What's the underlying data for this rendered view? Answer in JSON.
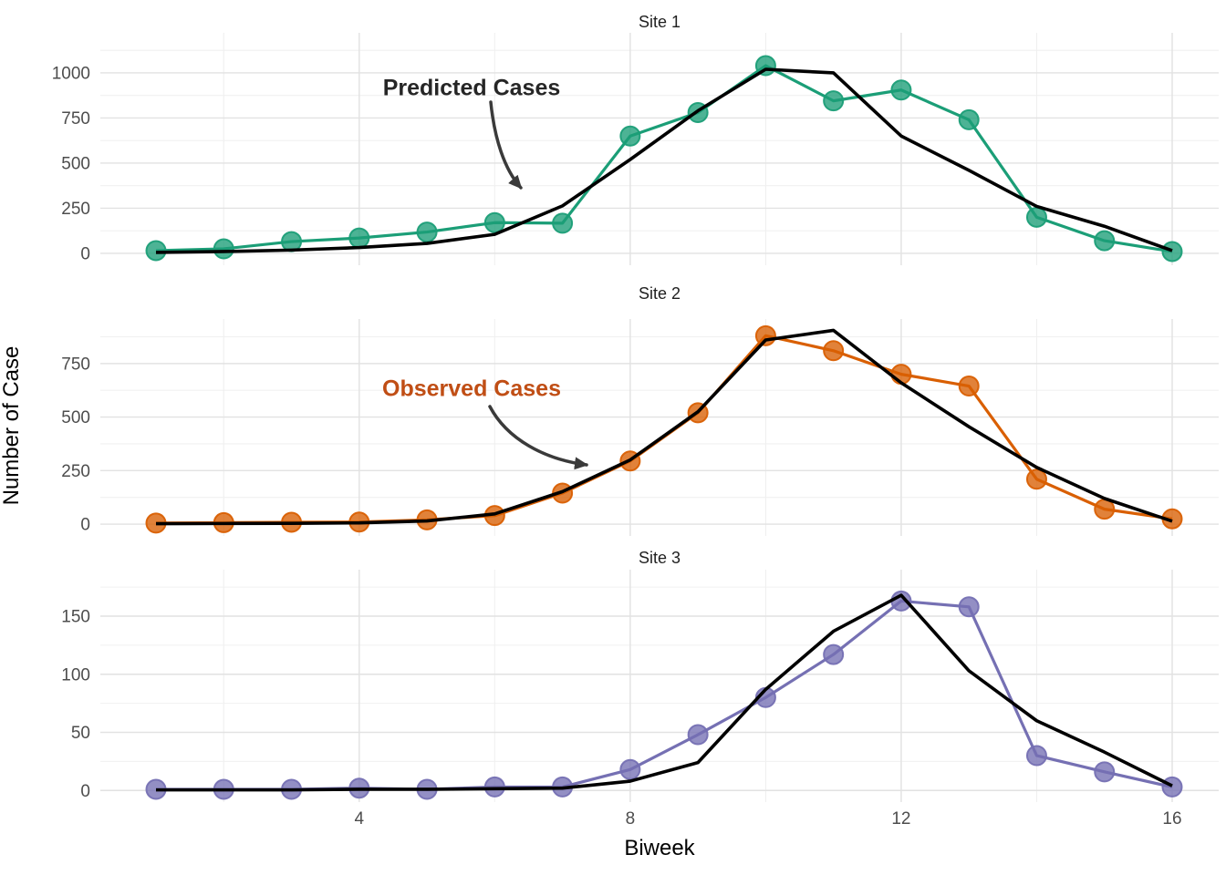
{
  "figure": {
    "x_axis_title": "Biweek",
    "y_axis_title": "Number of Case",
    "background": "#ffffff",
    "grid_major_color": "#e2e2e2",
    "grid_minor_color": "#f0f0f0"
  },
  "annotations": {
    "predicted": {
      "text": "Predicted Cases",
      "color": "#262626"
    },
    "observed": {
      "text": "Observed Cases",
      "color": "#c04e15"
    }
  },
  "x_ticks": [
    4,
    8,
    12,
    16
  ],
  "x_minor": [
    2,
    6,
    10,
    14
  ],
  "chart_data": [
    {
      "type": "line",
      "title": "Site 1",
      "xlabel": "Biweek",
      "ylabel": "Number of Case",
      "x": [
        1,
        2,
        3,
        4,
        5,
        6,
        7,
        8,
        9,
        10,
        11,
        12,
        13,
        14,
        15,
        16
      ],
      "series": [
        {
          "name": "Observed Cases",
          "color": "#1B9E77",
          "points": true,
          "values": [
            15,
            25,
            65,
            85,
            118,
            170,
            167,
            650,
            780,
            1040,
            845,
            905,
            740,
            200,
            70,
            10
          ]
        },
        {
          "name": "Predicted Cases",
          "color": "#000000",
          "points": false,
          "values": [
            5,
            10,
            18,
            32,
            55,
            105,
            263,
            520,
            790,
            1020,
            1000,
            650,
            460,
            260,
            150,
            15
          ]
        }
      ],
      "y_ticks": [
        0,
        250,
        500,
        750,
        1000
      ],
      "y_minor": [
        125,
        375,
        625,
        875,
        1125
      ],
      "ylim": [
        -66,
        1222
      ],
      "grid": true,
      "legend": "none"
    },
    {
      "type": "line",
      "title": "Site 2",
      "xlabel": "Biweek",
      "ylabel": "Number of Case",
      "x": [
        1,
        2,
        3,
        4,
        5,
        6,
        7,
        8,
        9,
        10,
        11,
        12,
        13,
        14,
        15,
        16
      ],
      "series": [
        {
          "name": "Observed Cases",
          "color": "#D95F02",
          "points": true,
          "values": [
            5,
            7,
            9,
            10,
            20,
            40,
            145,
            295,
            520,
            880,
            810,
            700,
            645,
            210,
            70,
            25
          ]
        },
        {
          "name": "Predicted Cases",
          "color": "#000000",
          "points": false,
          "values": [
            2,
            3,
            4,
            6,
            15,
            48,
            152,
            300,
            525,
            860,
            905,
            660,
            455,
            265,
            120,
            14
          ]
        }
      ],
      "y_ticks": [
        0,
        250,
        500,
        750
      ],
      "y_minor": [
        125,
        375,
        625,
        875
      ],
      "ylim": [
        -55,
        958
      ],
      "grid": true,
      "legend": "none"
    },
    {
      "type": "line",
      "title": "Site 3",
      "xlabel": "Biweek",
      "ylabel": "Number of Case",
      "x": [
        1,
        2,
        3,
        4,
        5,
        6,
        7,
        8,
        9,
        10,
        11,
        12,
        13,
        14,
        15,
        16
      ],
      "series": [
        {
          "name": "Observed Cases",
          "color": "#7570B3",
          "points": true,
          "values": [
            1,
            1,
            1,
            2,
            1,
            3,
            3,
            18,
            48,
            80,
            117,
            163,
            158,
            30,
            16,
            3
          ]
        },
        {
          "name": "Predicted Cases",
          "color": "#000000",
          "points": false,
          "values": [
            0.5,
            0.5,
            0.5,
            1,
            1,
            1.5,
            2,
            8,
            24,
            87,
            137,
            168,
            103,
            60,
            33,
            4
          ]
        }
      ],
      "y_ticks": [
        0,
        50,
        100,
        150
      ],
      "y_minor": [
        25,
        75,
        125,
        175
      ],
      "ylim": [
        -10,
        190
      ],
      "grid": true,
      "legend": "none"
    }
  ]
}
